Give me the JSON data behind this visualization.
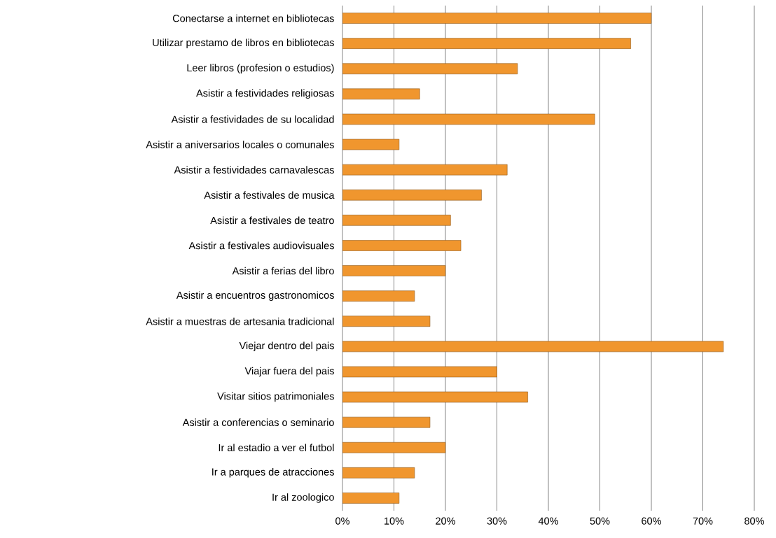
{
  "chart_data": {
    "type": "bar",
    "orientation": "horizontal",
    "categories": [
      "Conectarse a internet en bibliotecas",
      "Utilizar prestamo de libros en bibliotecas",
      "Leer libros (profesion o estudios)",
      "Asistir a festividades religiosas",
      "Asistir a festividades de su localidad",
      "Asistir a aniversarios locales o comunales",
      "Asistir a festividades carnavalescas",
      "Asistir a festivales de musica",
      "Asistir a festivales de teatro",
      "Asistir a festivales audiovisuales",
      "Asistir a ferias del libro",
      "Asistir a encuentros gastronomicos",
      "Asistir a muestras de artesania tradicional",
      "Viejar dentro del pais",
      "Viajar fuera del pais",
      "Visitar sitios patrimoniales",
      "Asistir a conferencias o seminario",
      "Ir al estadio a ver el futbol",
      "Ir a parques de atracciones",
      "Ir al zoologico"
    ],
    "values": [
      60,
      56,
      34,
      15,
      49,
      11,
      32,
      27,
      21,
      23,
      20,
      14,
      17,
      74,
      30,
      36,
      17,
      20,
      14,
      11
    ],
    "color": "#f0962e",
    "xlim": [
      0,
      80
    ],
    "xticks": [
      {
        "value": 0,
        "label": "0%"
      },
      {
        "value": 10,
        "label": "10%"
      },
      {
        "value": 20,
        "label": "20%"
      },
      {
        "value": 30,
        "label": "30%"
      },
      {
        "value": 40,
        "label": "40%"
      },
      {
        "value": 50,
        "label": "50%"
      },
      {
        "value": 60,
        "label": "60%"
      },
      {
        "value": 70,
        "label": "70%"
      },
      {
        "value": 80,
        "label": "80%"
      }
    ],
    "grid": "x"
  }
}
